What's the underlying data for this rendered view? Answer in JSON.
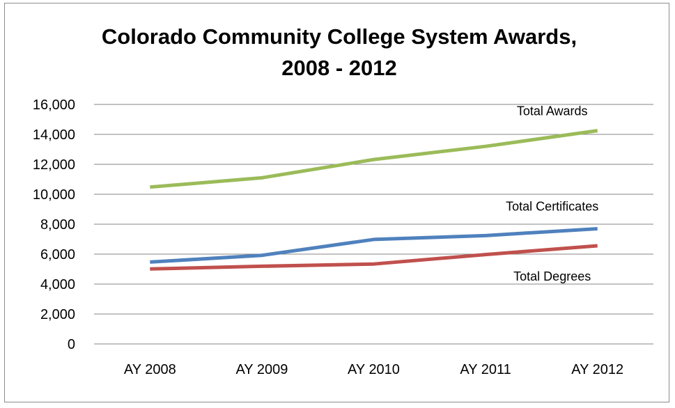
{
  "chart_data": {
    "type": "line",
    "title": "Colorado Community College System Awards,",
    "title_line2": "2008 - 2012",
    "xlabel": "",
    "ylabel": "",
    "categories": [
      "AY 2008",
      "AY 2009",
      "AY 2010",
      "AY 2011",
      "AY 2012"
    ],
    "ylim": [
      0,
      16000
    ],
    "yticks": [
      0,
      2000,
      4000,
      6000,
      8000,
      10000,
      12000,
      14000,
      16000
    ],
    "ytick_labels": [
      "0",
      "2,000",
      "4,000",
      "6,000",
      "8,000",
      "10,000",
      "12,000",
      "14,000",
      "16,000"
    ],
    "grid": true,
    "legend": "none",
    "series": [
      {
        "name": "Total Awards",
        "color": "#9BBB59",
        "values": [
          10480,
          11100,
          12320,
          13200,
          14250
        ]
      },
      {
        "name": "Total Certificates",
        "color": "#4F81BD",
        "values": [
          5470,
          5920,
          6980,
          7240,
          7700
        ]
      },
      {
        "name": "Total Degrees",
        "color": "#C0504D",
        "values": [
          5010,
          5190,
          5340,
          5970,
          6560
        ]
      }
    ]
  }
}
